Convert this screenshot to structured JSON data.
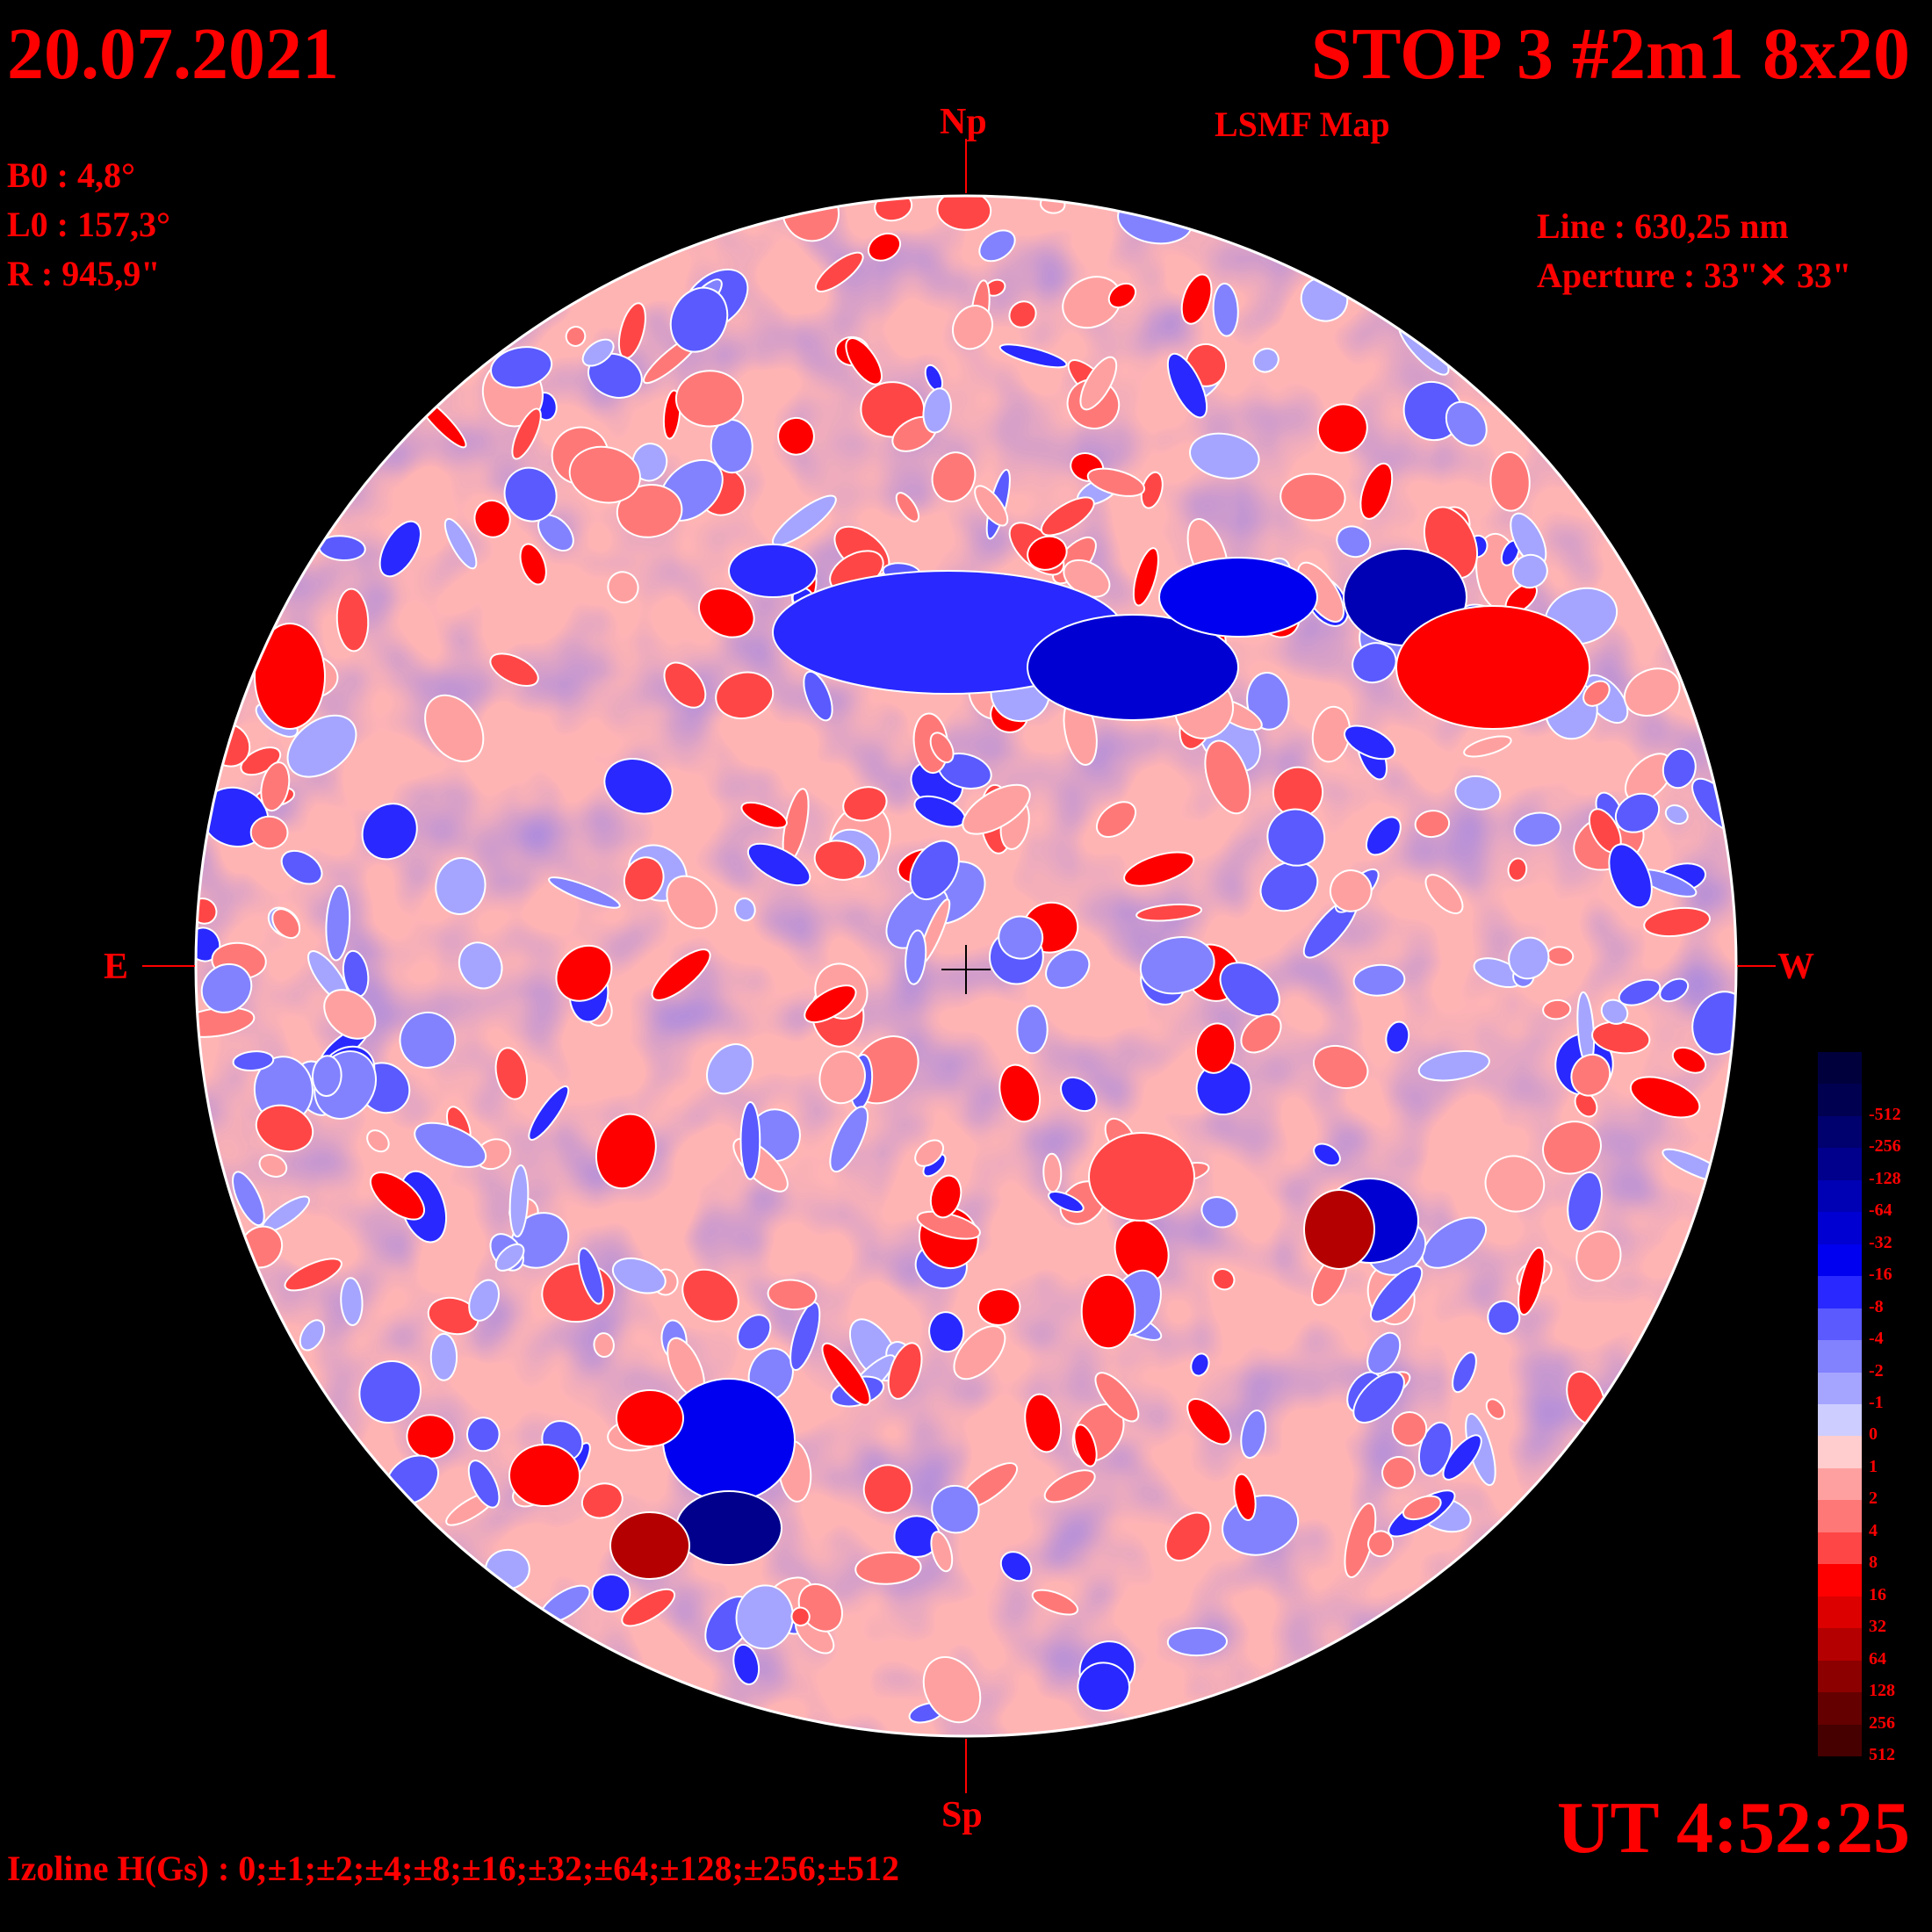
{
  "header": {
    "date": "20.07.2021",
    "title": "STOP 3 #2m1 8x20",
    "subtitle": "LSMF  Map",
    "time": "UT 4:52:25"
  },
  "ephemeris": {
    "b0": "B0 : 4,8°",
    "l0": "L0 : 157,3°",
    "r": "R  : 945,9\""
  },
  "instrument": {
    "line": "Line :  630,25 nm",
    "aperture": "Aperture : 33\"✕ 33\""
  },
  "orientation": {
    "north": "Np",
    "south": "Sp",
    "east": "E",
    "west": "W"
  },
  "izoline": "Izoline H(Gs) : 0;±1;±2;±4;±8;±16;±32;±64;±128;±256;±512",
  "colorbar": {
    "levels": [
      {
        "label": "",
        "color": "#00003c"
      },
      {
        "label": "-512",
        "color": "#000050"
      },
      {
        "label": "-256",
        "color": "#00006e"
      },
      {
        "label": "-128",
        "color": "#00008c"
      },
      {
        "label": "-64",
        "color": "#0000b4"
      },
      {
        "label": "-32",
        "color": "#0000d2"
      },
      {
        "label": "-16",
        "color": "#0000f0"
      },
      {
        "label": "-8",
        "color": "#2828ff"
      },
      {
        "label": "-4",
        "color": "#5a5aff"
      },
      {
        "label": "-2",
        "color": "#8282ff"
      },
      {
        "label": "-1",
        "color": "#a5a5ff"
      },
      {
        "label": "0",
        "color": "#cdcdff"
      },
      {
        "label": "1",
        "color": "#ffcdcd"
      },
      {
        "label": "2",
        "color": "#ffa0a0"
      },
      {
        "label": "4",
        "color": "#ff7878"
      },
      {
        "label": "8",
        "color": "#ff4646"
      },
      {
        "label": "16",
        "color": "#ff0000"
      },
      {
        "label": "32",
        "color": "#dc0000"
      },
      {
        "label": "64",
        "color": "#b40000"
      },
      {
        "label": "128",
        "color": "#8c0000"
      },
      {
        "label": "256",
        "color": "#640000"
      },
      {
        "label": "512",
        "color": "#460000"
      }
    ]
  }
}
